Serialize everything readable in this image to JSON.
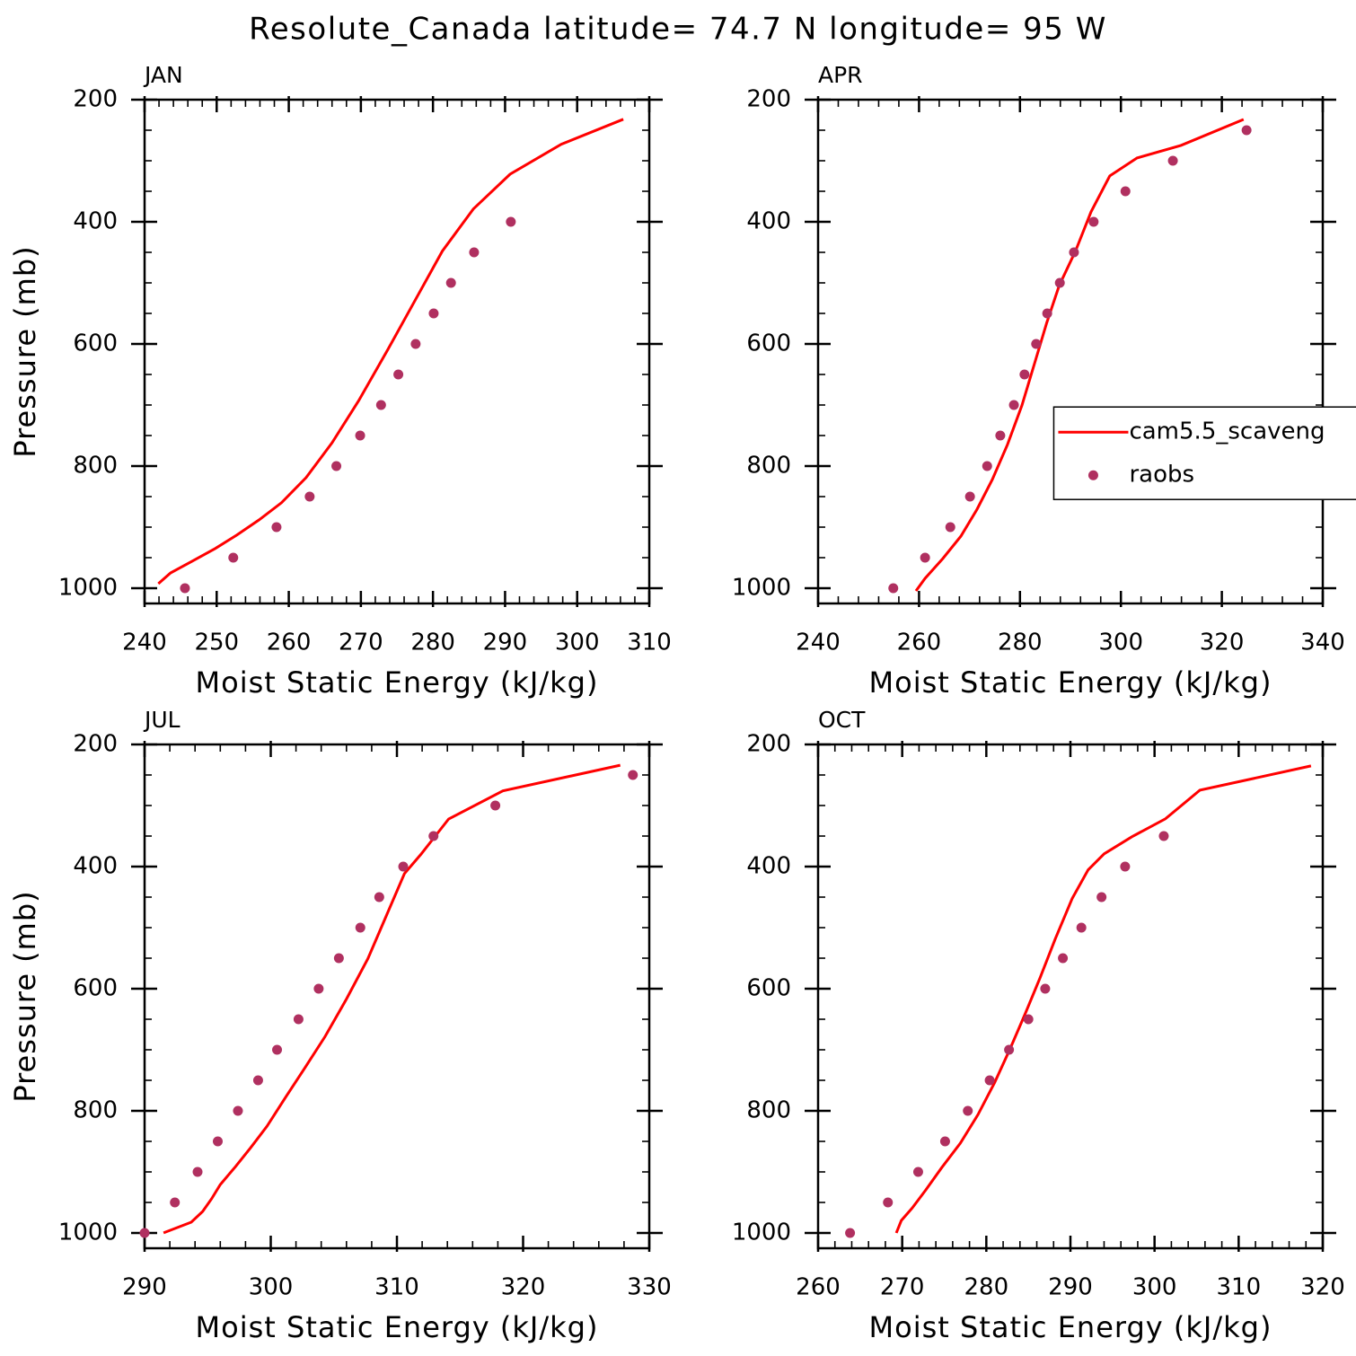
{
  "title": "Resolute_Canada  latitude= 74.7 N longitude= 95 W",
  "chart_data": [
    {
      "type": "line",
      "title": "JAN",
      "xlabel": "Moist Static Energy (kJ/kg)",
      "ylabel": "Pressure (mb)",
      "xlim": [
        240,
        310
      ],
      "xticks": [
        240,
        250,
        260,
        270,
        280,
        290,
        300,
        310
      ],
      "ylim": [
        1025,
        200
      ],
      "yticks": [
        200,
        400,
        600,
        800,
        1000
      ],
      "series": [
        {
          "type": "line",
          "color": "#ff0000",
          "x": [
            241.9,
            243.6,
            246.4,
            249.8,
            252.8,
            255.9,
            259.0,
            262.4,
            266.0,
            269.7,
            273.7,
            277.5,
            281.3,
            285.6,
            290.7,
            297.8,
            306.4
          ],
          "y": [
            992.7,
            975,
            957,
            935,
            913,
            888,
            860,
            819,
            762,
            693,
            610,
            529,
            448,
            379,
            322,
            273,
            232
          ]
        },
        {
          "type": "scatter",
          "color": "#b03060",
          "x": [
            245.6,
            252.3,
            258.3,
            262.9,
            266.6,
            269.9,
            272.8,
            275.2,
            277.6,
            280.1,
            282.5,
            285.7,
            290.8
          ],
          "y": [
            1000,
            950,
            900,
            850,
            800,
            750,
            700,
            650,
            600,
            550,
            500,
            450,
            400
          ]
        }
      ]
    },
    {
      "type": "line",
      "title": "APR",
      "xlabel": "Moist Static Energy (kJ/kg)",
      "xlim": [
        240,
        340
      ],
      "xticks": [
        240,
        260,
        280,
        300,
        320,
        340
      ],
      "ylim": [
        1025,
        200
      ],
      "yticks": [
        200,
        400,
        600,
        800,
        1000
      ],
      "legend": "right",
      "series": [
        {
          "type": "line",
          "name": "cam5.5_scaveng",
          "color": "#ff0000",
          "x": [
            259.4,
            261.2,
            264.7,
            268.3,
            271.5,
            274.5,
            277.5,
            280.4,
            282.9,
            285.3,
            287.8,
            291.0,
            294.1,
            297.8,
            303.2,
            311.9,
            324.3
          ],
          "y": [
            1004.4,
            983.9,
            951.6,
            914.9,
            870.8,
            822.4,
            765.1,
            700.6,
            631.6,
            565.5,
            503.9,
            448.1,
            383.5,
            324.8,
            295.4,
            274.9,
            232.3
          ]
        },
        {
          "type": "scatter",
          "name": "raobs",
          "color": "#b03060",
          "x": [
            254.9,
            261.2,
            266.2,
            270.1,
            273.5,
            276.1,
            278.8,
            280.9,
            283.2,
            285.4,
            287.9,
            290.7,
            294.6,
            300.9,
            310.3,
            324.9
          ],
          "y": [
            1000,
            950,
            900,
            850,
            800,
            750,
            700,
            650,
            600,
            550,
            500,
            450,
            400,
            350,
            300,
            250
          ]
        }
      ]
    },
    {
      "type": "line",
      "title": "JUL",
      "xlabel": "Moist Static Energy (kJ/kg)",
      "ylabel": "Pressure (mb)",
      "xlim": [
        290,
        330
      ],
      "xticks": [
        290,
        300,
        310,
        320,
        330
      ],
      "ylim": [
        1025,
        200
      ],
      "yticks": [
        200,
        400,
        600,
        800,
        1000
      ],
      "series": [
        {
          "type": "line",
          "color": "#ff0000",
          "x": [
            291.5,
            293.7,
            294.6,
            295.3,
            296.0,
            297.2,
            298.4,
            299.7,
            301.2,
            302.7,
            304.3,
            306.0,
            307.7,
            309.1,
            310.6,
            311.9,
            314.1,
            318.4,
            327.7
          ],
          "y": [
            999.9,
            982.4,
            964.8,
            944.2,
            920.7,
            891.4,
            860.6,
            825.3,
            776.9,
            729.9,
            678.5,
            616.9,
            550.8,
            483.3,
            411.4,
            380,
            322,
            276,
            234
          ]
        },
        {
          "type": "scatter",
          "color": "#b03060",
          "x": [
            290.0,
            292.4,
            294.2,
            295.8,
            297.4,
            299.0,
            300.5,
            302.2,
            303.8,
            305.4,
            307.1,
            308.6,
            310.5,
            312.9,
            317.8,
            328.7
          ],
          "y": [
            1000,
            950,
            900,
            850,
            800,
            750,
            700,
            650,
            600,
            550,
            500,
            450,
            400,
            350,
            300,
            250
          ]
        }
      ]
    },
    {
      "type": "line",
      "title": "OCT",
      "xlabel": "Moist Static Energy (kJ/kg)",
      "xlim": [
        260,
        320
      ],
      "xticks": [
        260,
        270,
        280,
        290,
        300,
        310,
        320
      ],
      "ylim": [
        1025,
        200
      ],
      "yticks": [
        200,
        400,
        600,
        800,
        1000
      ],
      "series": [
        {
          "type": "line",
          "color": "#ff0000",
          "x": [
            269.3,
            269.9,
            271.2,
            272.8,
            274.7,
            276.9,
            279.0,
            281.0,
            282.8,
            284.6,
            286.4,
            288.2,
            290.2,
            292.1,
            294.0,
            297.3,
            301.3,
            305.4,
            318.6
          ],
          "y": [
            1000,
            979.5,
            959,
            929.6,
            892.9,
            853.2,
            806.3,
            753.4,
            699.1,
            641.8,
            581.7,
            518.5,
            452.5,
            405.5,
            379.1,
            351.2,
            321.8,
            274.9,
            235.2
          ]
        },
        {
          "type": "scatter",
          "color": "#b03060",
          "x": [
            263.8,
            268.3,
            271.9,
            275.1,
            277.8,
            280.4,
            282.7,
            285.0,
            287.0,
            289.1,
            291.3,
            293.7,
            296.5,
            301.1
          ],
          "y": [
            1000,
            950,
            900,
            850,
            800,
            750,
            700,
            650,
            600,
            550,
            500,
            450,
            400,
            350
          ]
        }
      ]
    }
  ]
}
